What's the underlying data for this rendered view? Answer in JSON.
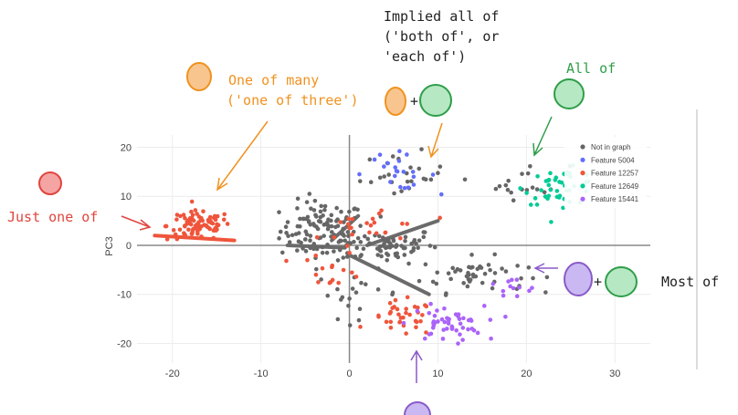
{
  "chart_data": {
    "type": "scatter",
    "ylabel": "PC3",
    "xlim": [
      -24,
      34
    ],
    "ylim": [
      -24,
      22.5
    ],
    "xticks": [
      -20,
      -10,
      0,
      10,
      20,
      30
    ],
    "yticks": [
      20,
      10,
      0,
      -10,
      -20
    ],
    "grid": true,
    "legend_placement": "top-right",
    "series": [
      {
        "name": "Not in graph",
        "color": "#666666"
      },
      {
        "name": "Feature 5004",
        "color": "#636efa"
      },
      {
        "name": "Feature 12257",
        "color": "#ef553b"
      },
      {
        "name": "Feature 12649",
        "color": "#00cc96"
      },
      {
        "name": "Feature 15441",
        "color": "#ab63fa"
      }
    ],
    "clusters": [
      {
        "series": 0,
        "center": [
          -3,
          3
        ],
        "spread": [
          4,
          5
        ],
        "n": 110
      },
      {
        "series": 0,
        "center": [
          4,
          0
        ],
        "spread": [
          5,
          3
        ],
        "n": 70
      },
      {
        "series": 0,
        "center": [
          14,
          -6
        ],
        "spread": [
          5,
          3
        ],
        "n": 50
      },
      {
        "series": 0,
        "center": [
          20,
          13
        ],
        "spread": [
          4,
          3
        ],
        "n": 18
      },
      {
        "series": 0,
        "center": [
          6,
          14
        ],
        "spread": [
          4,
          4
        ],
        "n": 25
      },
      {
        "series": 0,
        "center": [
          1,
          -10
        ],
        "spread": [
          4,
          4
        ],
        "n": 20
      },
      {
        "series": 1,
        "center": [
          5,
          15
        ],
        "spread": [
          4,
          3
        ],
        "n": 22
      },
      {
        "series": 2,
        "center": [
          -17,
          4
        ],
        "spread": [
          3,
          2.5
        ],
        "n": 90
      },
      {
        "series": 2,
        "center": [
          6,
          -15
        ],
        "spread": [
          3,
          3
        ],
        "n": 35
      },
      {
        "series": 2,
        "center": [
          3,
          4
        ],
        "spread": [
          5,
          4
        ],
        "n": 25
      },
      {
        "series": 2,
        "center": [
          -2,
          -5
        ],
        "spread": [
          3,
          3
        ],
        "n": 15
      },
      {
        "series": 3,
        "center": [
          24,
          12
        ],
        "spread": [
          3.5,
          3
        ],
        "n": 45
      },
      {
        "series": 4,
        "center": [
          11,
          -16
        ],
        "spread": [
          3.5,
          3
        ],
        "n": 50
      },
      {
        "series": 4,
        "center": [
          18,
          -9
        ],
        "spread": [
          3,
          2
        ],
        "n": 12
      }
    ],
    "lines": [
      {
        "from": [
          -7,
          0
        ],
        "to": [
          -0.5,
          -0.5
        ]
      },
      {
        "from": [
          -2,
          1
        ],
        "to": [
          1,
          6
        ]
      },
      {
        "from": [
          2,
          0
        ],
        "to": [
          10,
          5
        ]
      },
      {
        "from": [
          0,
          -2
        ],
        "to": [
          9,
          -10
        ]
      }
    ],
    "red_line": {
      "from": [
        -22,
        2
      ],
      "to": [
        -13,
        1
      ]
    }
  },
  "annotations": {
    "just_one": "Just one of",
    "one_of_many_1": "One of many",
    "one_of_many_2": "('one of three')",
    "implied_1": "Implied all of",
    "implied_2": "('both of', or",
    "implied_3": "'each of')",
    "all_of": "All of",
    "most_of": "Most of",
    "plus_1": "+",
    "plus_2": "+"
  },
  "colors": {
    "red": "#e0453e",
    "orange": "#f0921f",
    "green": "#2e9e48",
    "purple": "#8a5ac8"
  }
}
